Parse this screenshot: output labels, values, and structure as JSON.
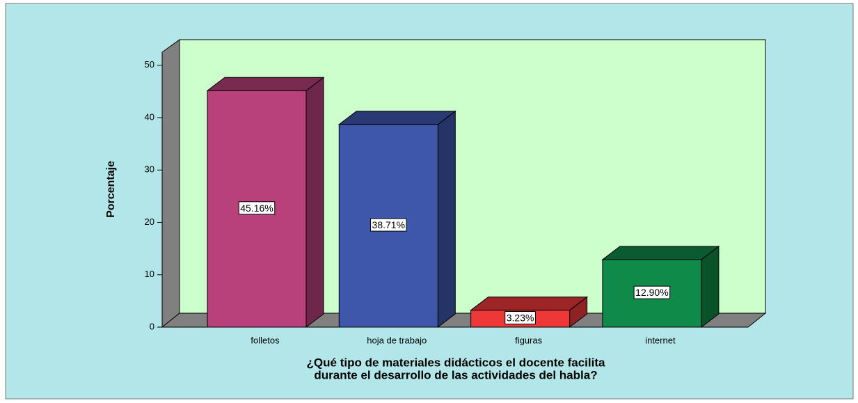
{
  "chart_data": {
    "type": "bar3d",
    "ylabel": "Porcentaje",
    "xlabel": [
      "¿Qué tipo de materiales didácticos el docente facilita",
      "durante el desarrollo de las actividades del habla?"
    ],
    "categories": [
      "folletos",
      "hoja de trabajo",
      "figuras",
      "internet"
    ],
    "values": [
      45.16,
      38.71,
      3.23,
      12.9
    ],
    "value_labels": [
      "45.16%",
      "38.71%",
      "3.23%",
      "12.90%"
    ],
    "colors": [
      "#b8407b",
      "#3e57ab",
      "#ee3838",
      "#0f8a48"
    ],
    "ylim": [
      0,
      52.5
    ],
    "yticks": [
      0,
      10,
      20,
      30,
      40,
      50
    ]
  }
}
